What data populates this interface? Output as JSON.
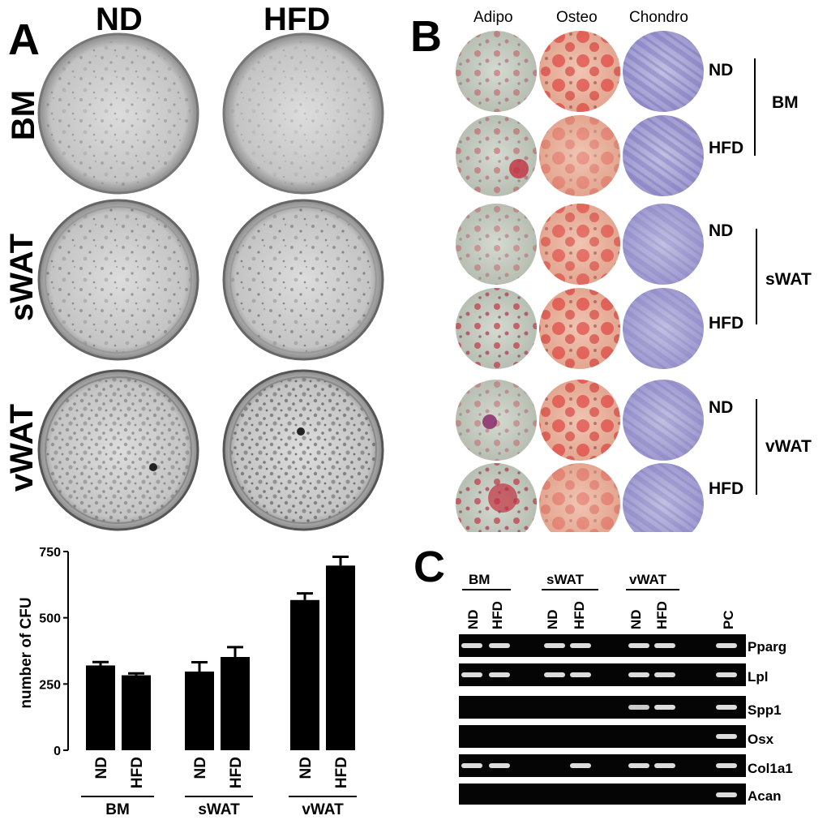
{
  "panel_a": {
    "letter": "A",
    "columns": [
      "ND",
      "HFD"
    ],
    "rows": [
      "BM",
      "sWAT",
      "vWAT"
    ]
  },
  "panel_b": {
    "letter": "B",
    "columns": [
      "Adipo",
      "Osteo",
      "Chondro"
    ],
    "groups": [
      {
        "name": "BM",
        "conditions": [
          "ND",
          "HFD"
        ]
      },
      {
        "name": "sWAT",
        "conditions": [
          "ND",
          "HFD"
        ]
      },
      {
        "name": "vWAT",
        "conditions": [
          "ND",
          "HFD"
        ]
      }
    ],
    "colors": {
      "adipo_bg": "#c9cfc4",
      "adipo_drop": "#c0303f",
      "osteo_bg": "#e9b39e",
      "osteo_stain": "#de2c2c",
      "chondro_bg": "#b4b2d8",
      "chondro_stain": "#6c64b4"
    }
  },
  "panel_c": {
    "letter": "C",
    "groups": [
      "BM",
      "sWAT",
      "vWAT"
    ],
    "lanes": [
      "ND",
      "HFD",
      "ND",
      "HFD",
      "ND",
      "HFD",
      "PC"
    ],
    "genes": [
      {
        "name": "Pparg",
        "bands": [
          1,
          1,
          1,
          1,
          1,
          1,
          1
        ]
      },
      {
        "name": "Lpl",
        "bands": [
          1,
          1,
          1,
          1,
          1,
          1,
          1
        ]
      },
      {
        "name": "Spp1",
        "bands": [
          0,
          0,
          0,
          0,
          0.8,
          1,
          1
        ]
      },
      {
        "name": "Osx",
        "bands": [
          0,
          0,
          0,
          0,
          0,
          0,
          1
        ]
      },
      {
        "name": "Col1a1",
        "bands": [
          1,
          1,
          0,
          1,
          1,
          1,
          1
        ]
      },
      {
        "name": "Acan",
        "bands": [
          0,
          0,
          0,
          0,
          0,
          0,
          1
        ]
      }
    ]
  },
  "chart_data": {
    "type": "bar",
    "ylabel": "number of CFU",
    "ylim": [
      0,
      750
    ],
    "yticks": [
      0,
      250,
      500,
      750
    ],
    "groups": [
      "BM",
      "sWAT",
      "vWAT"
    ],
    "categories": [
      "ND",
      "HFD",
      "ND",
      "HFD",
      "ND",
      "HFD"
    ],
    "values": [
      320,
      283,
      297,
      352,
      567,
      697
    ],
    "errors": [
      13,
      7,
      35,
      37,
      25,
      33
    ],
    "bar_color": "#000000"
  }
}
